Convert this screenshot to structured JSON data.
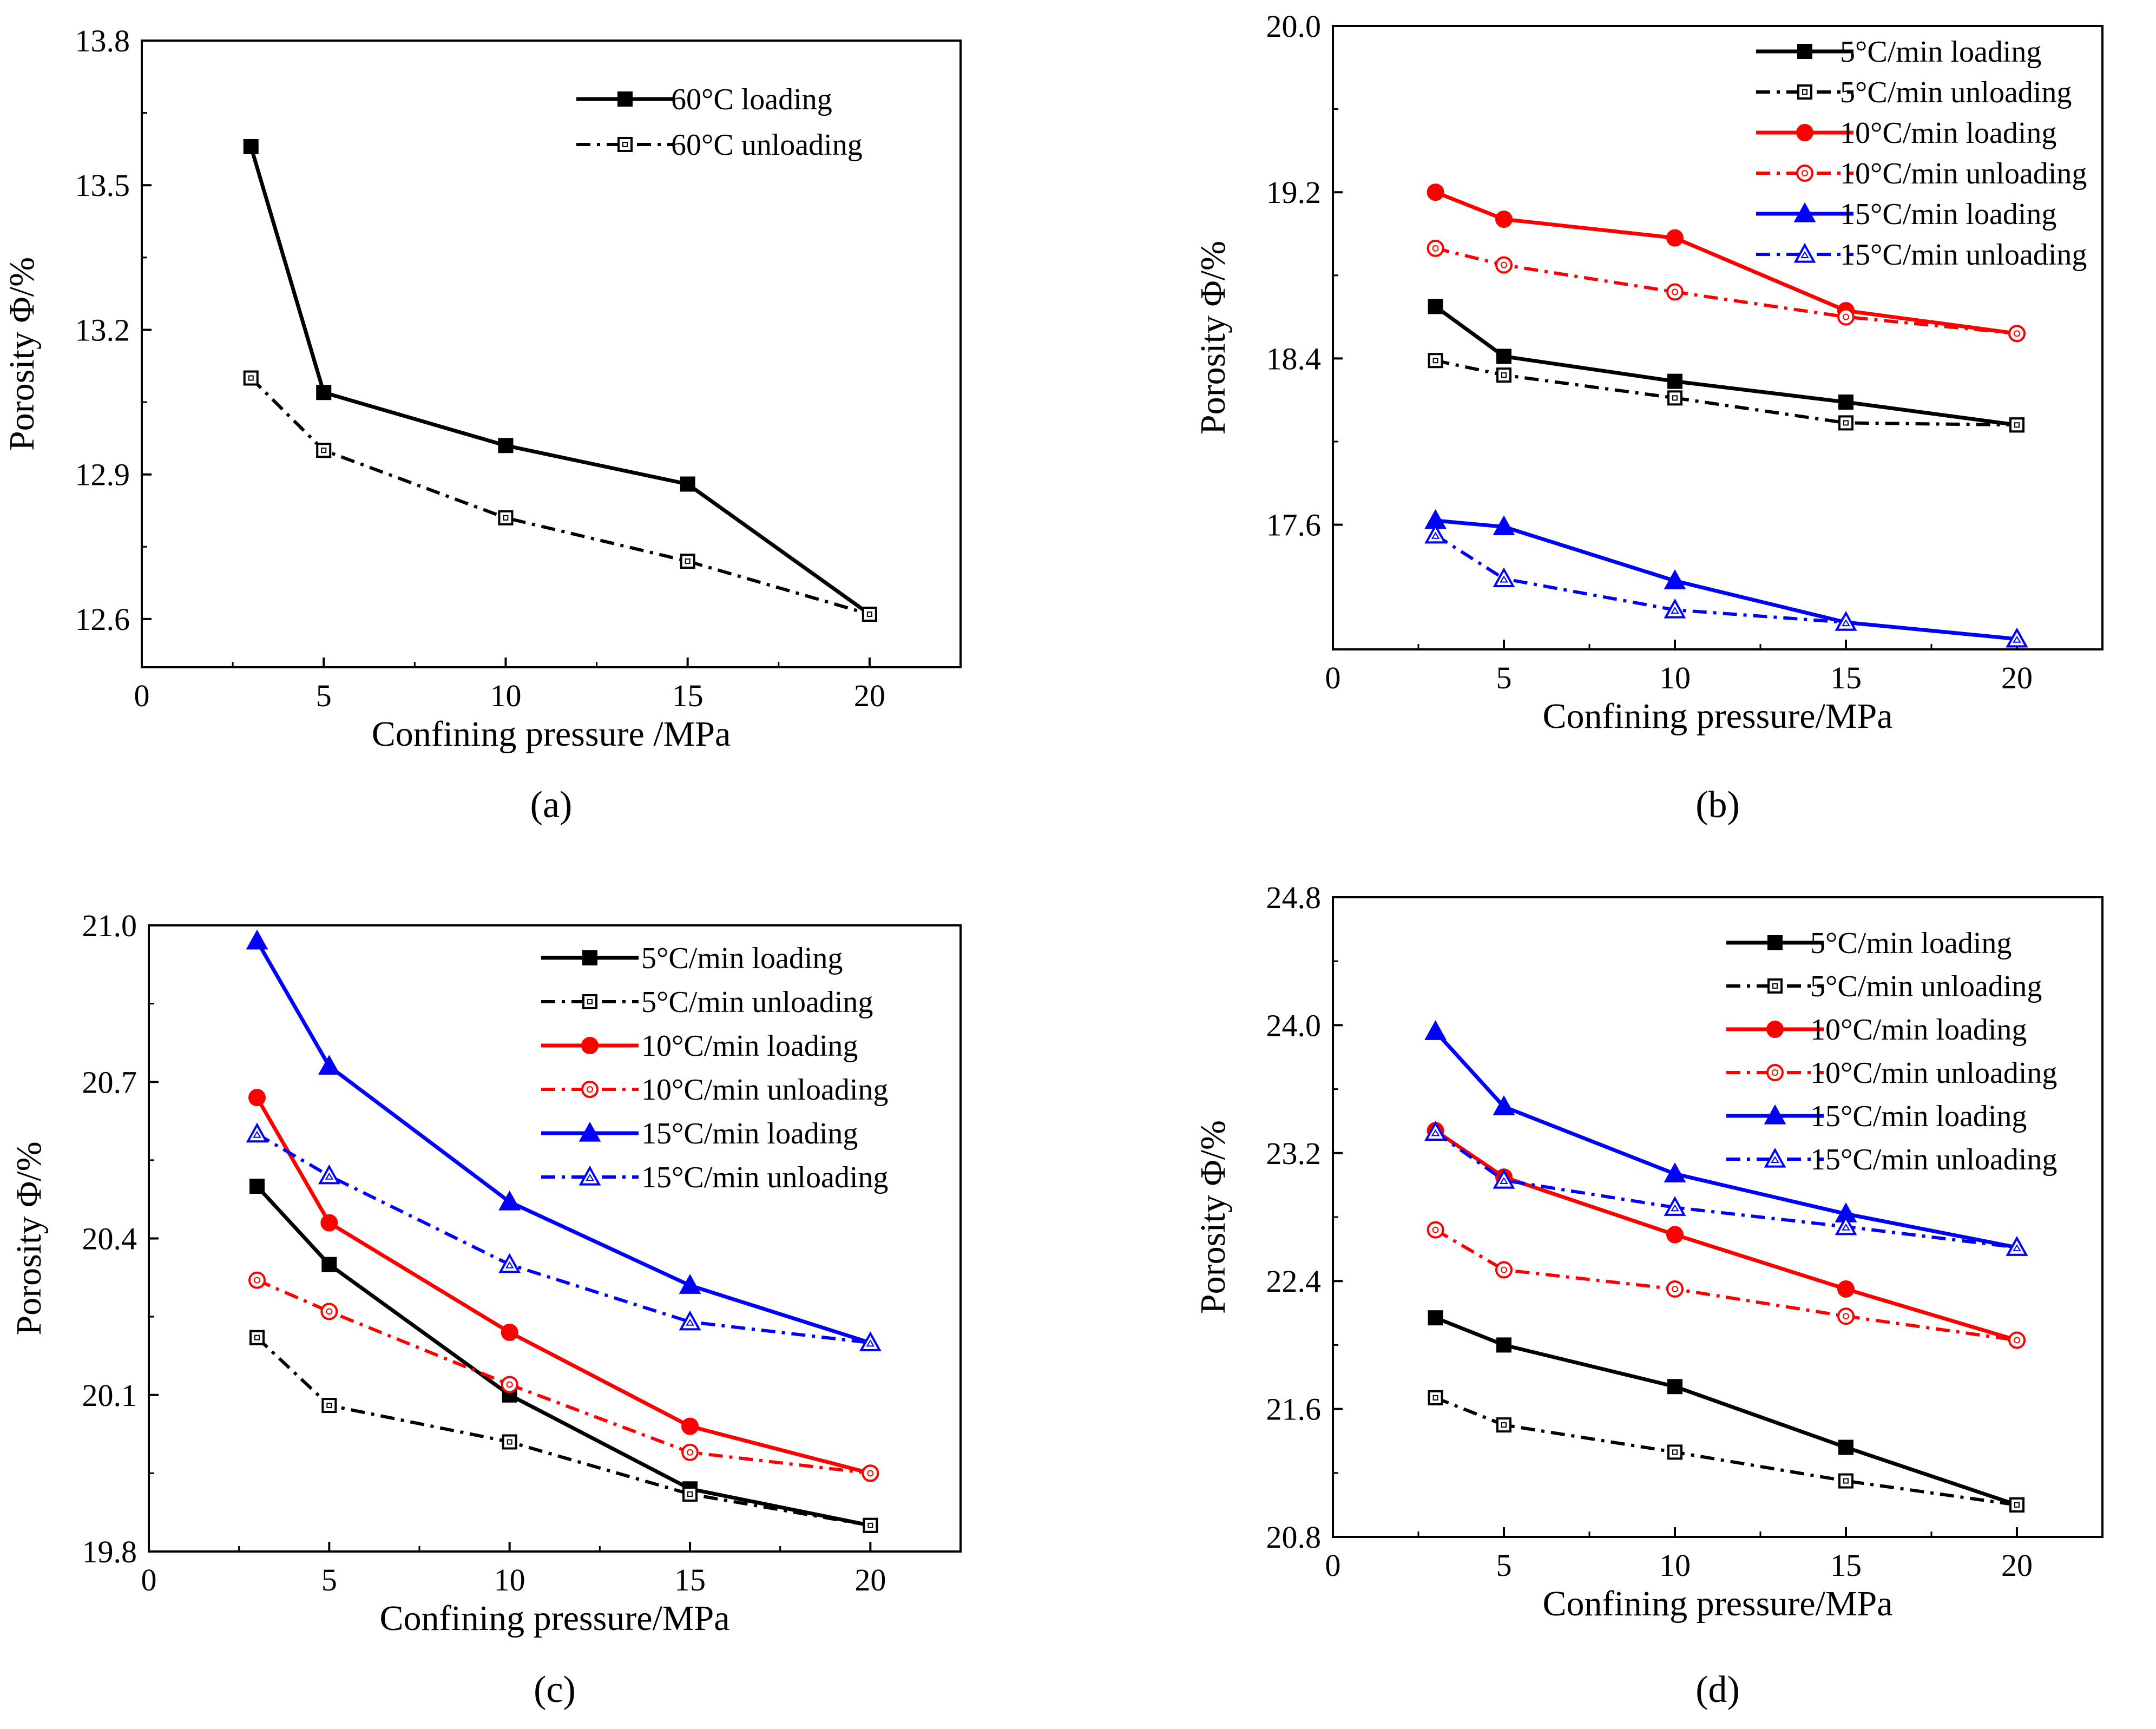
{
  "chart_data": [
    {
      "type": "line",
      "panel": "(a)",
      "xlabel": "Confining pressure /MPa",
      "ylabel": "Porosity  Φ/%",
      "xlim": [
        0,
        22.5
      ],
      "ylim": [
        12.5,
        13.8
      ],
      "xticks": [
        0,
        5,
        10,
        15,
        20
      ],
      "yticks": [
        12.6,
        12.9,
        13.2,
        13.5,
        13.8
      ],
      "ytick_labels": [
        "12.6",
        "12.9",
        "13.2",
        "13.5",
        "13.8"
      ],
      "legend_position": "top-right",
      "x": [
        3,
        5,
        10,
        15,
        20
      ],
      "series": [
        {
          "name": "60°C loading",
          "values": [
            13.58,
            13.07,
            12.96,
            12.88,
            12.61
          ],
          "color": "#000000",
          "dash": "solid",
          "marker": "square",
          "filled": true
        },
        {
          "name": "60°C unloading",
          "values": [
            13.1,
            12.95,
            12.81,
            12.72,
            12.61
          ],
          "color": "#000000",
          "dash": "dashdot",
          "marker": "square",
          "filled": false
        }
      ]
    },
    {
      "type": "line",
      "panel": "(b)",
      "xlabel": "Confining pressure/MPa",
      "ylabel": "Porosity  Φ/%",
      "xlim": [
        0,
        22.5
      ],
      "ylim": [
        17.0,
        20.0
      ],
      "xticks": [
        0,
        5,
        10,
        15,
        20
      ],
      "yticks": [
        17.6,
        18.4,
        19.2,
        20.0
      ],
      "ytick_labels": [
        "17.6",
        "18.4",
        "19.2",
        "20.0"
      ],
      "legend_position": "top-right",
      "x": [
        3,
        5,
        10,
        15,
        20
      ],
      "series": [
        {
          "name": "5°C/min loading",
          "values": [
            18.65,
            18.41,
            18.29,
            18.19,
            18.08
          ],
          "color": "#000000",
          "dash": "solid",
          "marker": "square",
          "filled": true
        },
        {
          "name": "5°C/min unloading",
          "values": [
            18.39,
            18.32,
            18.21,
            18.09,
            18.08
          ],
          "color": "#000000",
          "dash": "dashdot",
          "marker": "square",
          "filled": false
        },
        {
          "name": "10°C/min loading",
          "values": [
            19.2,
            19.07,
            18.98,
            18.63,
            18.52
          ],
          "color": "#ff0000",
          "dash": "solid",
          "marker": "circle",
          "filled": true
        },
        {
          "name": "10°C/min unloading",
          "values": [
            18.93,
            18.85,
            18.72,
            18.6,
            18.52
          ],
          "color": "#ff0000",
          "dash": "dashdot",
          "marker": "circle",
          "filled": false
        },
        {
          "name": "15°C/min loading",
          "values": [
            17.62,
            17.59,
            17.33,
            17.13,
            17.05
          ],
          "color": "#0000ff",
          "dash": "solid",
          "marker": "triangle",
          "filled": true
        },
        {
          "name": "15°C/min unloading",
          "values": [
            17.55,
            17.34,
            17.19,
            17.13,
            17.05
          ],
          "color": "#0000ff",
          "dash": "dashdot",
          "marker": "triangle",
          "filled": false
        }
      ]
    },
    {
      "type": "line",
      "panel": "(c)",
      "xlabel": "Confining pressure/MPa",
      "ylabel": "Porosity  Φ/%",
      "xlim": [
        0,
        22.5
      ],
      "ylim": [
        19.8,
        21.0
      ],
      "xticks": [
        0,
        5,
        10,
        15,
        20
      ],
      "yticks": [
        19.8,
        20.1,
        20.4,
        20.7,
        21.0
      ],
      "ytick_labels": [
        "19.8",
        "20.1",
        "20.4",
        "20.7",
        "21.0"
      ],
      "legend_position": "top-right",
      "x": [
        3,
        5,
        10,
        15,
        20
      ],
      "series": [
        {
          "name": "5°C/min loading",
          "values": [
            20.5,
            20.35,
            20.1,
            19.92,
            19.85
          ],
          "color": "#000000",
          "dash": "solid",
          "marker": "square",
          "filled": true
        },
        {
          "name": "5°C/min unloading",
          "values": [
            20.21,
            20.08,
            20.01,
            19.91,
            19.85
          ],
          "color": "#000000",
          "dash": "dashdot",
          "marker": "square",
          "filled": false
        },
        {
          "name": "10°C/min loading",
          "values": [
            20.67,
            20.43,
            20.22,
            20.04,
            19.95
          ],
          "color": "#ff0000",
          "dash": "solid",
          "marker": "circle",
          "filled": true
        },
        {
          "name": "10°C/min unloading",
          "values": [
            20.32,
            20.26,
            20.12,
            19.99,
            19.95
          ],
          "color": "#ff0000",
          "dash": "dashdot",
          "marker": "circle",
          "filled": false
        },
        {
          "name": "15°C/min loading",
          "values": [
            20.97,
            20.73,
            20.47,
            20.31,
            20.2
          ],
          "color": "#0000ff",
          "dash": "solid",
          "marker": "triangle",
          "filled": true
        },
        {
          "name": "15°C/min unloading",
          "values": [
            20.6,
            20.52,
            20.35,
            20.24,
            20.2
          ],
          "color": "#0000ff",
          "dash": "dashdot",
          "marker": "triangle",
          "filled": false
        }
      ]
    },
    {
      "type": "line",
      "panel": "(d)",
      "xlabel": "Confining pressure/MPa",
      "ylabel": "Porosity  Φ/%",
      "xlim": [
        0,
        22.5
      ],
      "ylim": [
        20.8,
        24.8
      ],
      "xticks": [
        0,
        5,
        10,
        15,
        20
      ],
      "yticks": [
        20.8,
        21.6,
        22.4,
        23.2,
        24.0,
        24.8
      ],
      "ytick_labels": [
        "20.8",
        "21.6",
        "22.4",
        "23.2",
        "24.0",
        "24.8"
      ],
      "legend_position": "top-right",
      "x": [
        3,
        5,
        10,
        15,
        20
      ],
      "series": [
        {
          "name": "5°C/min loading",
          "values": [
            22.17,
            22.0,
            21.74,
            21.36,
            21.0
          ],
          "color": "#000000",
          "dash": "solid",
          "marker": "square",
          "filled": true
        },
        {
          "name": "5°C/min unloading",
          "values": [
            21.67,
            21.5,
            21.33,
            21.15,
            21.0
          ],
          "color": "#000000",
          "dash": "dashdot",
          "marker": "square",
          "filled": false
        },
        {
          "name": "10°C/min loading",
          "values": [
            23.34,
            23.05,
            22.69,
            22.35,
            22.03
          ],
          "color": "#ff0000",
          "dash": "solid",
          "marker": "circle",
          "filled": true
        },
        {
          "name": "10°C/min unloading",
          "values": [
            22.72,
            22.47,
            22.35,
            22.18,
            22.03
          ],
          "color": "#ff0000",
          "dash": "dashdot",
          "marker": "circle",
          "filled": false
        },
        {
          "name": "15°C/min loading",
          "values": [
            23.96,
            23.49,
            23.07,
            22.82,
            22.61
          ],
          "color": "#0000ff",
          "dash": "solid",
          "marker": "triangle",
          "filled": true
        },
        {
          "name": "15°C/min unloading",
          "values": [
            23.33,
            23.03,
            22.86,
            22.74,
            22.61
          ],
          "color": "#0000ff",
          "dash": "dashdot",
          "marker": "triangle",
          "filled": false
        }
      ]
    }
  ]
}
